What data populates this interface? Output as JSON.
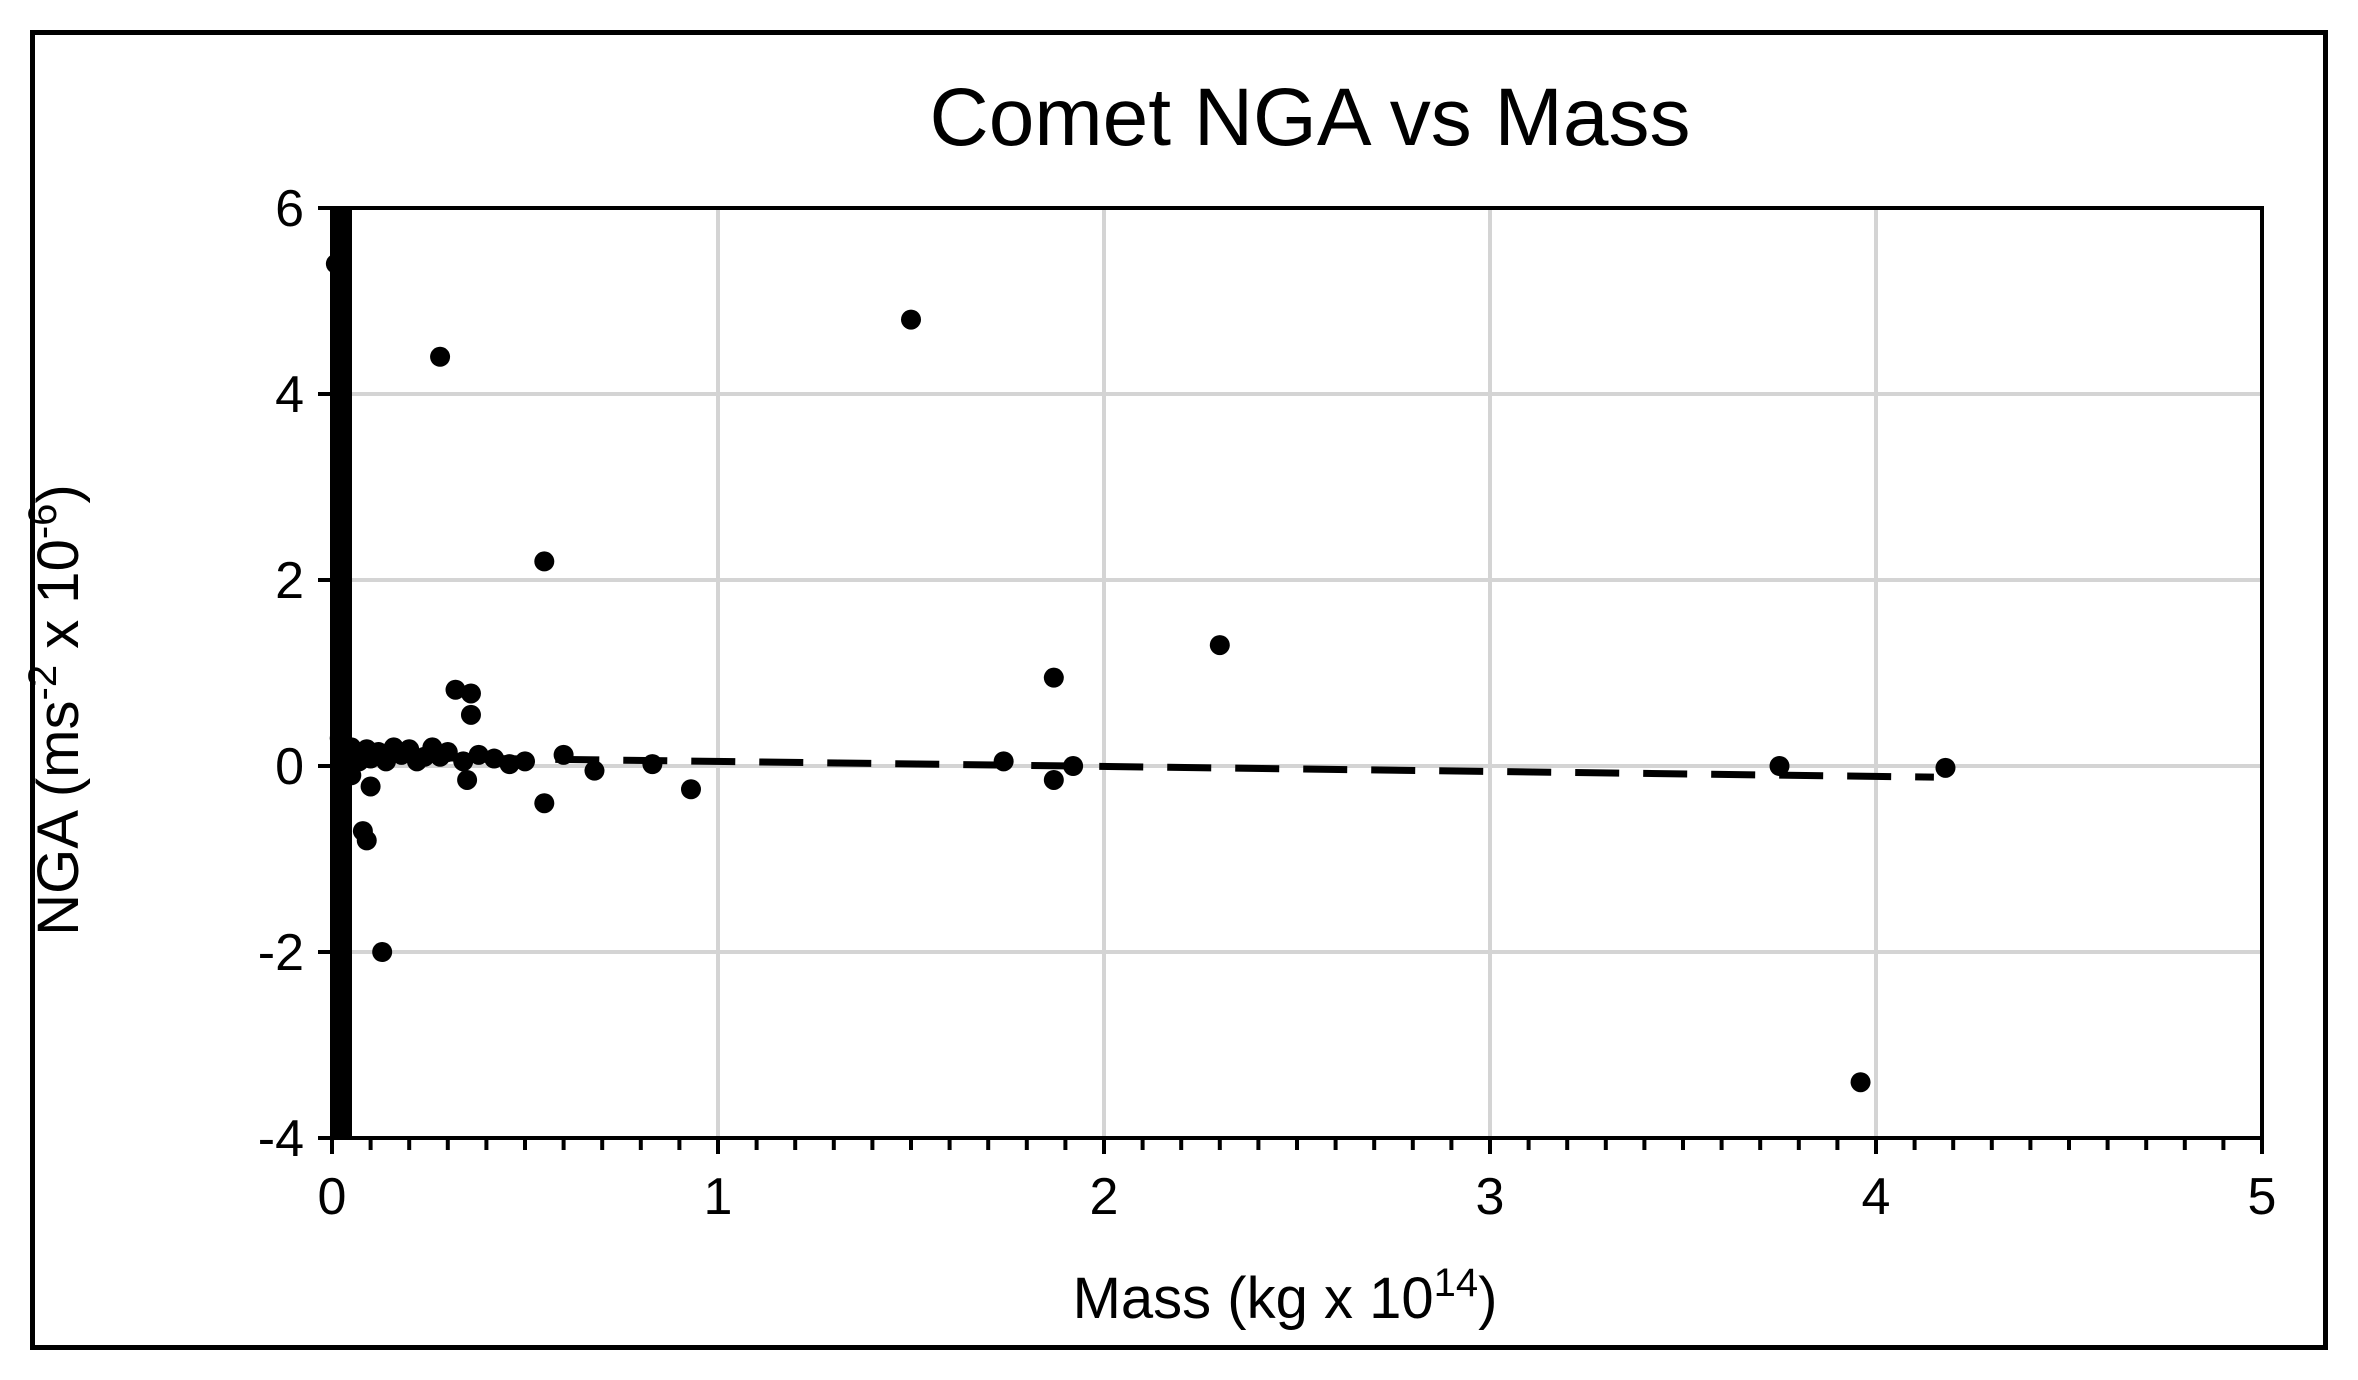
{
  "chart_data": {
    "type": "scatter",
    "title": "Comet NGA vs Mass",
    "xlabel": {
      "prefix": "Mass (kg x 10",
      "sup": "14",
      "suffix": ")"
    },
    "ylabel": {
      "prefix": "NGA (ms",
      "sup1": "-2",
      "middle": " x 10",
      "sup2": "-6",
      "suffix": ")"
    },
    "xlim": [
      0,
      5
    ],
    "ylim": [
      -4,
      6
    ],
    "xticks": [
      "0",
      "1",
      "2",
      "3",
      "4",
      "5"
    ],
    "yticks": [
      "-4",
      "-2",
      "0",
      "2",
      "4",
      "6"
    ],
    "grid": true,
    "trendline": {
      "style": "dashed",
      "points": [
        [
          0.05,
          0.1
        ],
        [
          4.15,
          -0.12
        ]
      ]
    },
    "points": [
      [
        0.01,
        5.4
      ],
      [
        0.28,
        4.4
      ],
      [
        1.5,
        4.8
      ],
      [
        0.55,
        2.2
      ],
      [
        2.3,
        1.3
      ],
      [
        1.87,
        0.95
      ],
      [
        0.32,
        0.82
      ],
      [
        0.36,
        0.78
      ],
      [
        0.36,
        0.55
      ],
      [
        0.02,
        0.3
      ],
      [
        0.03,
        0.25
      ],
      [
        0.04,
        0.15
      ],
      [
        0.05,
        0.2
      ],
      [
        0.06,
        0.1
      ],
      [
        0.07,
        0.05
      ],
      [
        0.09,
        0.18
      ],
      [
        0.1,
        0.08
      ],
      [
        0.12,
        0.15
      ],
      [
        0.14,
        0.05
      ],
      [
        0.16,
        0.2
      ],
      [
        0.18,
        0.12
      ],
      [
        0.2,
        0.18
      ],
      [
        0.22,
        0.05
      ],
      [
        0.24,
        0.1
      ],
      [
        0.26,
        0.2
      ],
      [
        0.28,
        0.1
      ],
      [
        0.3,
        0.15
      ],
      [
        0.34,
        0.05
      ],
      [
        0.38,
        0.12
      ],
      [
        0.42,
        0.08
      ],
      [
        0.46,
        0.02
      ],
      [
        0.5,
        0.05
      ],
      [
        0.6,
        0.12
      ],
      [
        0.68,
        -0.05
      ],
      [
        0.83,
        0.02
      ],
      [
        1.74,
        0.05
      ],
      [
        1.92,
        0.0
      ],
      [
        3.75,
        0.0
      ],
      [
        4.18,
        -0.02
      ],
      [
        0.03,
        -0.05
      ],
      [
        0.05,
        -0.1
      ],
      [
        0.1,
        -0.22
      ],
      [
        0.35,
        -0.15
      ],
      [
        0.55,
        -0.4
      ],
      [
        0.93,
        -0.25
      ],
      [
        1.87,
        -0.15
      ],
      [
        0.08,
        -0.7
      ],
      [
        0.09,
        -0.8
      ],
      [
        0.13,
        -2.0
      ],
      [
        3.96,
        -3.4
      ]
    ]
  }
}
